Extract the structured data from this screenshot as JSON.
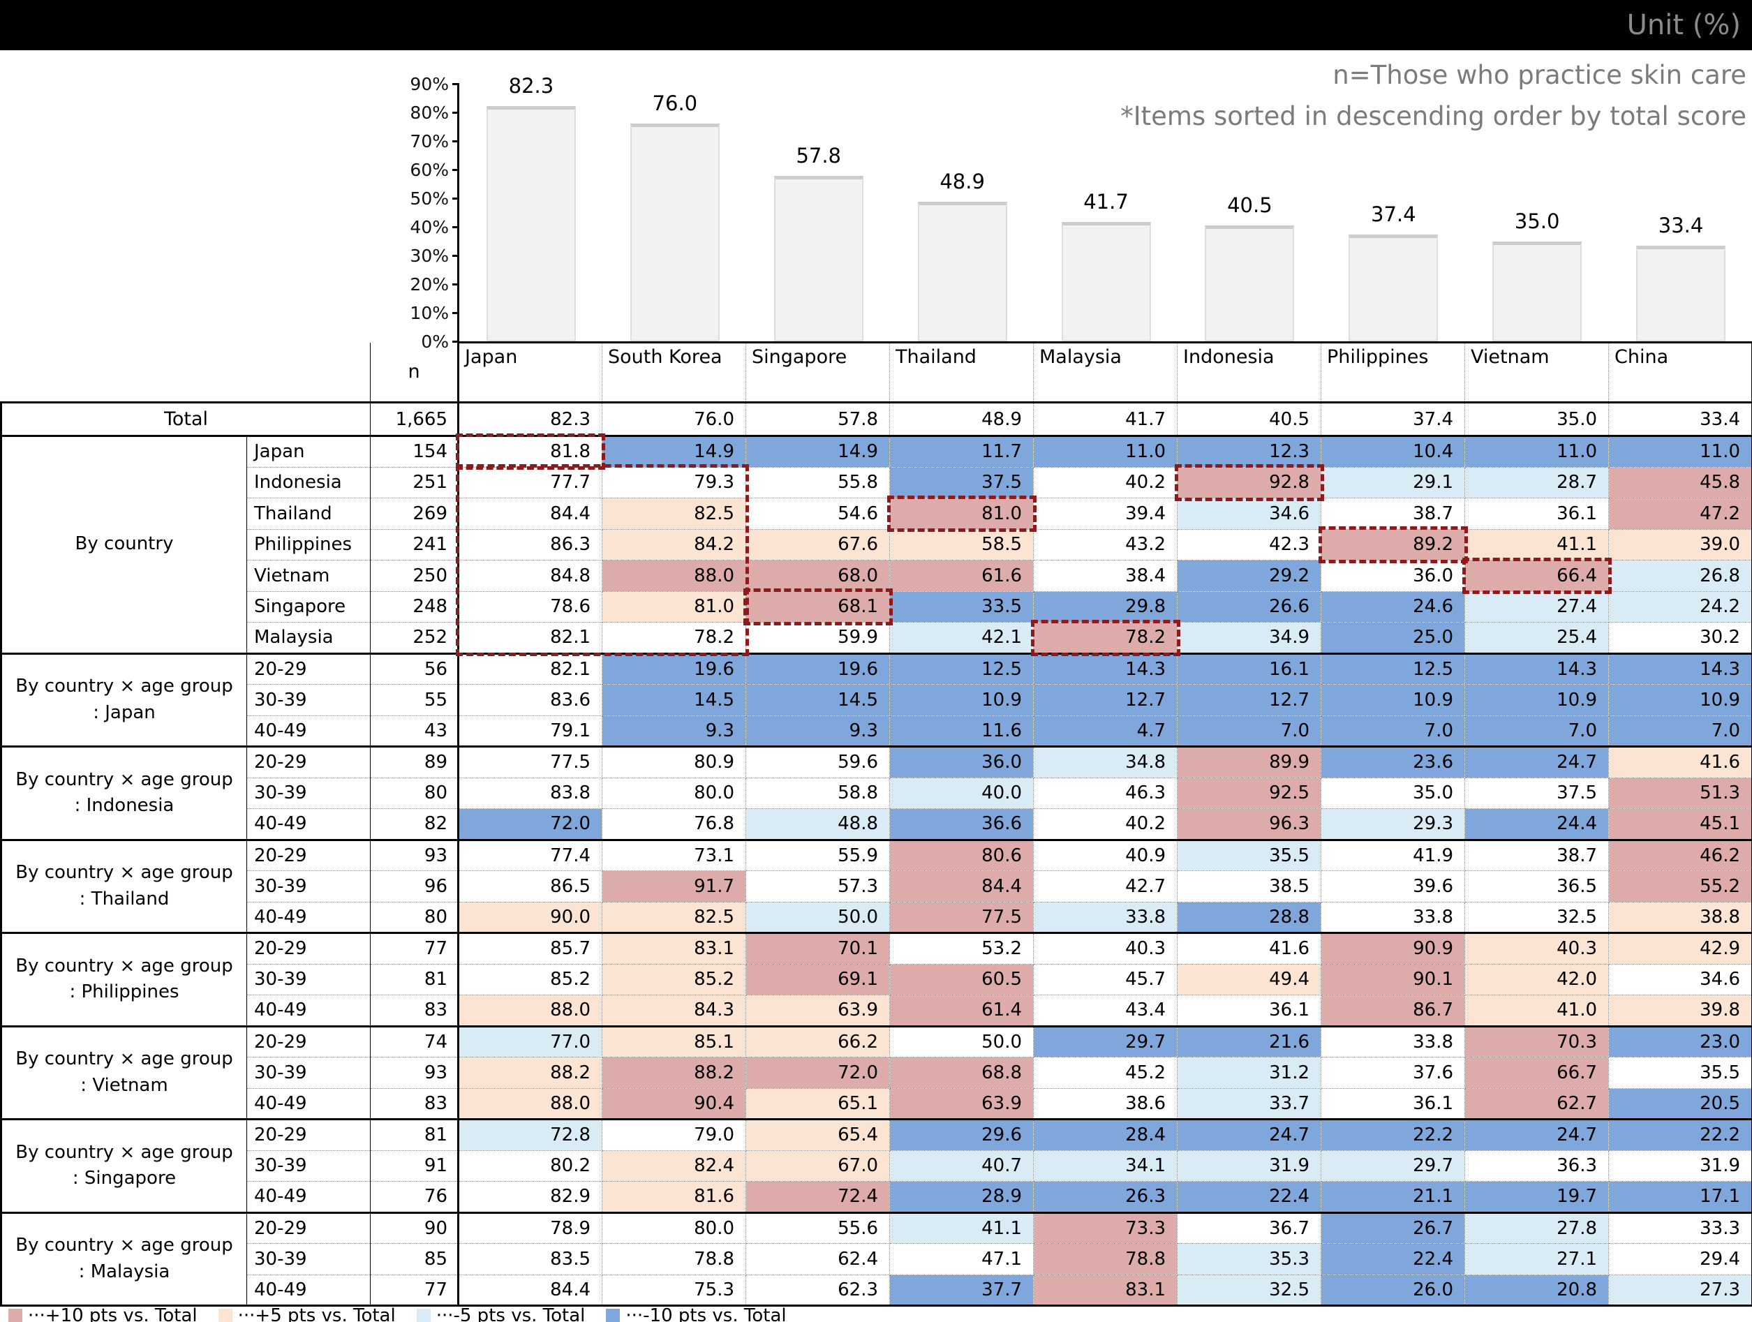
{
  "topbar": {
    "unit_label": "Unit (%)"
  },
  "annotations": {
    "line1": "n=Those who practice skin care",
    "line2": "*Items sorted in descending order by total score"
  },
  "chart_data": {
    "type": "bar",
    "title": "",
    "categories": [
      "Japan",
      "South Korea",
      "Singapore",
      "Thailand",
      "Malaysia",
      "Indonesia",
      "Philippines",
      "Vietnam",
      "China"
    ],
    "values": [
      82.3,
      76.0,
      57.8,
      48.9,
      41.7,
      40.5,
      37.4,
      35.0,
      33.4
    ],
    "yticks": [
      "0%",
      "10%",
      "20%",
      "30%",
      "40%",
      "50%",
      "60%",
      "70%",
      "80%",
      "90%"
    ],
    "ylim": [
      0,
      90
    ],
    "grid": false,
    "legend_position": "none",
    "bar_fill": "#f2f2f2",
    "bar_edge": "#d9d9d9"
  },
  "cell_colors": {
    "p": "#deabab",
    "pe": "#fce4d2",
    "lb": "#d9ebf4",
    "b": "#7fa7db",
    "w": ""
  },
  "table": {
    "n_header": "n",
    "columns": [
      "Japan",
      "South Korea",
      "Singapore",
      "Thailand",
      "Malaysia",
      "Indonesia",
      "Philippines",
      "Vietnam",
      "China"
    ],
    "total_row": {
      "label": "Total",
      "n": "1,665",
      "values": [
        "82.3",
        "76.0",
        "57.8",
        "48.9",
        "41.7",
        "40.5",
        "37.4",
        "35.0",
        "33.4"
      ],
      "colors": [
        "w",
        "w",
        "w",
        "w",
        "w",
        "w",
        "w",
        "w",
        "w"
      ]
    },
    "sections": [
      {
        "label_line1": "By country",
        "label_line2": "",
        "rows": [
          {
            "label": "Japan",
            "n": "154",
            "values": [
              "81.8",
              "14.9",
              "14.9",
              "11.7",
              "11.0",
              "12.3",
              "10.4",
              "11.0",
              "11.0"
            ],
            "colors": [
              "w",
              "b",
              "b",
              "b",
              "b",
              "b",
              "b",
              "b",
              "b"
            ]
          },
          {
            "label": "Indonesia",
            "n": "251",
            "values": [
              "77.7",
              "79.3",
              "55.8",
              "37.5",
              "40.2",
              "92.8",
              "29.1",
              "28.7",
              "45.8"
            ],
            "colors": [
              "w",
              "w",
              "w",
              "b",
              "w",
              "p",
              "lb",
              "lb",
              "p"
            ]
          },
          {
            "label": "Thailand",
            "n": "269",
            "values": [
              "84.4",
              "82.5",
              "54.6",
              "81.0",
              "39.4",
              "34.6",
              "38.7",
              "36.1",
              "47.2"
            ],
            "colors": [
              "w",
              "pe",
              "w",
              "p",
              "w",
              "lb",
              "w",
              "w",
              "p"
            ]
          },
          {
            "label": "Philippines",
            "n": "241",
            "values": [
              "86.3",
              "84.2",
              "67.6",
              "58.5",
              "43.2",
              "42.3",
              "89.2",
              "41.1",
              "39.0"
            ],
            "colors": [
              "w",
              "pe",
              "pe",
              "pe",
              "w",
              "w",
              "p",
              "pe",
              "pe"
            ]
          },
          {
            "label": "Vietnam",
            "n": "250",
            "values": [
              "84.8",
              "88.0",
              "68.0",
              "61.6",
              "38.4",
              "29.2",
              "36.0",
              "66.4",
              "26.8"
            ],
            "colors": [
              "w",
              "p",
              "p",
              "p",
              "w",
              "b",
              "w",
              "p",
              "lb"
            ]
          },
          {
            "label": "Singapore",
            "n": "248",
            "values": [
              "78.6",
              "81.0",
              "68.1",
              "33.5",
              "29.8",
              "26.6",
              "24.6",
              "27.4",
              "24.2"
            ],
            "colors": [
              "w",
              "pe",
              "p",
              "b",
              "b",
              "b",
              "b",
              "lb",
              "lb"
            ]
          },
          {
            "label": "Malaysia",
            "n": "252",
            "values": [
              "82.1",
              "78.2",
              "59.9",
              "42.1",
              "78.2",
              "34.9",
              "25.0",
              "25.4",
              "30.2"
            ],
            "colors": [
              "w",
              "w",
              "w",
              "lb",
              "p",
              "lb",
              "b",
              "lb",
              "w"
            ]
          }
        ]
      },
      {
        "label_line1": "By country × age group",
        "label_line2": ": Japan",
        "rows": [
          {
            "label": "20-29",
            "n": "56",
            "values": [
              "82.1",
              "19.6",
              "19.6",
              "12.5",
              "14.3",
              "16.1",
              "12.5",
              "14.3",
              "14.3"
            ],
            "colors": [
              "w",
              "b",
              "b",
              "b",
              "b",
              "b",
              "b",
              "b",
              "b"
            ]
          },
          {
            "label": "30-39",
            "n": "55",
            "values": [
              "83.6",
              "14.5",
              "14.5",
              "10.9",
              "12.7",
              "12.7",
              "10.9",
              "10.9",
              "10.9"
            ],
            "colors": [
              "w",
              "b",
              "b",
              "b",
              "b",
              "b",
              "b",
              "b",
              "b"
            ]
          },
          {
            "label": "40-49",
            "n": "43",
            "values": [
              "79.1",
              "9.3",
              "9.3",
              "11.6",
              "4.7",
              "7.0",
              "7.0",
              "7.0",
              "7.0"
            ],
            "colors": [
              "w",
              "b",
              "b",
              "b",
              "b",
              "b",
              "b",
              "b",
              "b"
            ]
          }
        ]
      },
      {
        "label_line1": "By country × age group",
        "label_line2": ": Indonesia",
        "rows": [
          {
            "label": "20-29",
            "n": "89",
            "values": [
              "77.5",
              "80.9",
              "59.6",
              "36.0",
              "34.8",
              "89.9",
              "23.6",
              "24.7",
              "41.6"
            ],
            "colors": [
              "w",
              "w",
              "w",
              "b",
              "lb",
              "p",
              "b",
              "b",
              "pe"
            ]
          },
          {
            "label": "30-39",
            "n": "80",
            "values": [
              "83.8",
              "80.0",
              "58.8",
              "40.0",
              "46.3",
              "92.5",
              "35.0",
              "37.5",
              "51.3"
            ],
            "colors": [
              "w",
              "w",
              "w",
              "lb",
              "w",
              "p",
              "w",
              "w",
              "p"
            ]
          },
          {
            "label": "40-49",
            "n": "82",
            "values": [
              "72.0",
              "76.8",
              "48.8",
              "36.6",
              "40.2",
              "96.3",
              "29.3",
              "24.4",
              "45.1"
            ],
            "colors": [
              "b",
              "w",
              "lb",
              "b",
              "w",
              "p",
              "lb",
              "b",
              "p"
            ]
          }
        ]
      },
      {
        "label_line1": "By country × age group",
        "label_line2": ": Thailand",
        "rows": [
          {
            "label": "20-29",
            "n": "93",
            "values": [
              "77.4",
              "73.1",
              "55.9",
              "80.6",
              "40.9",
              "35.5",
              "41.9",
              "38.7",
              "46.2"
            ],
            "colors": [
              "w",
              "w",
              "w",
              "p",
              "w",
              "lb",
              "w",
              "w",
              "p"
            ]
          },
          {
            "label": "30-39",
            "n": "96",
            "values": [
              "86.5",
              "91.7",
              "57.3",
              "84.4",
              "42.7",
              "38.5",
              "39.6",
              "36.5",
              "55.2"
            ],
            "colors": [
              "w",
              "p",
              "w",
              "p",
              "w",
              "w",
              "w",
              "w",
              "p"
            ]
          },
          {
            "label": "40-49",
            "n": "80",
            "values": [
              "90.0",
              "82.5",
              "50.0",
              "77.5",
              "33.8",
              "28.8",
              "33.8",
              "32.5",
              "38.8"
            ],
            "colors": [
              "pe",
              "pe",
              "lb",
              "p",
              "lb",
              "b",
              "w",
              "w",
              "pe"
            ]
          }
        ]
      },
      {
        "label_line1": "By country × age group",
        "label_line2": ": Philippines",
        "rows": [
          {
            "label": "20-29",
            "n": "77",
            "values": [
              "85.7",
              "83.1",
              "70.1",
              "53.2",
              "40.3",
              "41.6",
              "90.9",
              "40.3",
              "42.9"
            ],
            "colors": [
              "w",
              "pe",
              "p",
              "w",
              "w",
              "w",
              "p",
              "pe",
              "pe"
            ]
          },
          {
            "label": "30-39",
            "n": "81",
            "values": [
              "85.2",
              "85.2",
              "69.1",
              "60.5",
              "45.7",
              "49.4",
              "90.1",
              "42.0",
              "34.6"
            ],
            "colors": [
              "w",
              "pe",
              "p",
              "p",
              "w",
              "pe",
              "p",
              "pe",
              "w"
            ]
          },
          {
            "label": "40-49",
            "n": "83",
            "values": [
              "88.0",
              "84.3",
              "63.9",
              "61.4",
              "43.4",
              "36.1",
              "86.7",
              "41.0",
              "39.8"
            ],
            "colors": [
              "pe",
              "pe",
              "pe",
              "p",
              "w",
              "w",
              "p",
              "pe",
              "pe"
            ]
          }
        ]
      },
      {
        "label_line1": "By country × age group",
        "label_line2": ": Vietnam",
        "rows": [
          {
            "label": "20-29",
            "n": "74",
            "values": [
              "77.0",
              "85.1",
              "66.2",
              "50.0",
              "29.7",
              "21.6",
              "33.8",
              "70.3",
              "23.0"
            ],
            "colors": [
              "lb",
              "pe",
              "pe",
              "w",
              "b",
              "b",
              "w",
              "p",
              "b"
            ]
          },
          {
            "label": "30-39",
            "n": "93",
            "values": [
              "88.2",
              "88.2",
              "72.0",
              "68.8",
              "45.2",
              "31.2",
              "37.6",
              "66.7",
              "35.5"
            ],
            "colors": [
              "pe",
              "p",
              "p",
              "p",
              "w",
              "lb",
              "w",
              "p",
              "w"
            ]
          },
          {
            "label": "40-49",
            "n": "83",
            "values": [
              "88.0",
              "90.4",
              "65.1",
              "63.9",
              "38.6",
              "33.7",
              "36.1",
              "62.7",
              "20.5"
            ],
            "colors": [
              "pe",
              "p",
              "pe",
              "p",
              "w",
              "lb",
              "w",
              "p",
              "b"
            ]
          }
        ]
      },
      {
        "label_line1": "By country × age group",
        "label_line2": ": Singapore",
        "rows": [
          {
            "label": "20-29",
            "n": "81",
            "values": [
              "72.8",
              "79.0",
              "65.4",
              "29.6",
              "28.4",
              "24.7",
              "22.2",
              "24.7",
              "22.2"
            ],
            "colors": [
              "lb",
              "w",
              "pe",
              "b",
              "b",
              "b",
              "b",
              "b",
              "b"
            ]
          },
          {
            "label": "30-39",
            "n": "91",
            "values": [
              "80.2",
              "82.4",
              "67.0",
              "40.7",
              "34.1",
              "31.9",
              "29.7",
              "36.3",
              "31.9"
            ],
            "colors": [
              "w",
              "pe",
              "pe",
              "lb",
              "lb",
              "lb",
              "lb",
              "w",
              "w"
            ]
          },
          {
            "label": "40-49",
            "n": "76",
            "values": [
              "82.9",
              "81.6",
              "72.4",
              "28.9",
              "26.3",
              "22.4",
              "21.1",
              "19.7",
              "17.1"
            ],
            "colors": [
              "w",
              "pe",
              "p",
              "b",
              "b",
              "b",
              "b",
              "b",
              "b"
            ]
          }
        ]
      },
      {
        "label_line1": "By country × age group",
        "label_line2": ": Malaysia",
        "rows": [
          {
            "label": "20-29",
            "n": "90",
            "values": [
              "78.9",
              "80.0",
              "55.6",
              "41.1",
              "73.3",
              "36.7",
              "26.7",
              "27.8",
              "33.3"
            ],
            "colors": [
              "w",
              "w",
              "w",
              "lb",
              "p",
              "w",
              "b",
              "lb",
              "w"
            ]
          },
          {
            "label": "30-39",
            "n": "85",
            "values": [
              "83.5",
              "78.8",
              "62.4",
              "47.1",
              "78.8",
              "35.3",
              "22.4",
              "27.1",
              "29.4"
            ],
            "colors": [
              "w",
              "w",
              "w",
              "w",
              "p",
              "lb",
              "b",
              "lb",
              "w"
            ]
          },
          {
            "label": "40-49",
            "n": "77",
            "values": [
              "84.4",
              "75.3",
              "62.3",
              "37.7",
              "83.1",
              "32.5",
              "26.0",
              "20.8",
              "27.3"
            ],
            "colors": [
              "w",
              "w",
              "w",
              "b",
              "p",
              "lb",
              "b",
              "b",
              "lb"
            ]
          }
        ]
      }
    ],
    "highlight_color": "#8e1b1b",
    "highlights": [
      {
        "row": 0,
        "col": 0,
        "rows": 1,
        "cols": 1
      },
      {
        "row": 1,
        "col": 0,
        "rows": 6,
        "cols": 2
      },
      {
        "row": 1,
        "col": 5,
        "rows": 1,
        "cols": 1
      },
      {
        "row": 2,
        "col": 3,
        "rows": 1,
        "cols": 1
      },
      {
        "row": 3,
        "col": 6,
        "rows": 1,
        "cols": 1
      },
      {
        "row": 4,
        "col": 7,
        "rows": 1,
        "cols": 1
      },
      {
        "row": 5,
        "col": 2,
        "rows": 1,
        "cols": 1
      },
      {
        "row": 6,
        "col": 4,
        "rows": 1,
        "cols": 1
      }
    ]
  },
  "legend": {
    "items": [
      {
        "swatch": "#deabab",
        "label": "···+10 pts vs. Total"
      },
      {
        "swatch": "#fce4d2",
        "label": "···+5 pts vs. Total"
      },
      {
        "swatch": "#d9ebf4",
        "label": "···-5 pts vs. Total"
      },
      {
        "swatch": "#7fa7db",
        "label": "···-10 pts vs. Total"
      }
    ]
  }
}
